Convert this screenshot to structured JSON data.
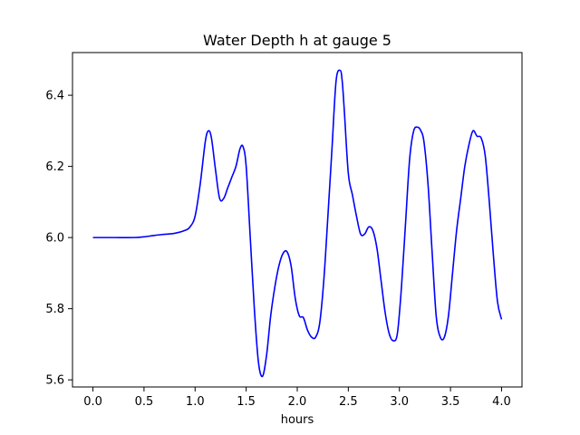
{
  "chart_data": {
    "type": "line",
    "title": "Water Depth h at gauge 5",
    "xlabel": "hours",
    "ylabel": "",
    "xlim": [
      -0.2,
      4.2
    ],
    "ylim": [
      5.58,
      6.52
    ],
    "x_ticks": [
      "0.0",
      "0.5",
      "1.0",
      "1.5",
      "2.0",
      "2.5",
      "3.0",
      "3.5",
      "4.0"
    ],
    "y_ticks": [
      "5.6",
      "5.8",
      "6.0",
      "6.2",
      "6.4"
    ],
    "grid": false,
    "legend": "none",
    "series": [
      {
        "color": "#0000ff",
        "x": [
          0.0,
          0.2,
          0.4,
          0.5,
          0.6,
          0.7,
          0.8,
          0.9,
          0.95,
          1.0,
          1.05,
          1.1,
          1.13,
          1.16,
          1.2,
          1.24,
          1.28,
          1.32,
          1.36,
          1.4,
          1.44,
          1.47,
          1.5,
          1.54,
          1.58,
          1.62,
          1.66,
          1.7,
          1.74,
          1.78,
          1.82,
          1.86,
          1.9,
          1.94,
          1.98,
          2.02,
          2.06,
          2.1,
          2.14,
          2.18,
          2.22,
          2.26,
          2.3,
          2.34,
          2.38,
          2.42,
          2.44,
          2.46,
          2.5,
          2.54,
          2.58,
          2.62,
          2.66,
          2.7,
          2.74,
          2.78,
          2.82,
          2.86,
          2.9,
          2.94,
          2.98,
          3.02,
          3.06,
          3.1,
          3.14,
          3.18,
          3.21,
          3.24,
          3.28,
          3.32,
          3.36,
          3.4,
          3.44,
          3.48,
          3.52,
          3.56,
          3.6,
          3.64,
          3.68,
          3.72,
          3.76,
          3.8,
          3.84,
          3.88,
          3.92,
          3.96,
          4.0
        ],
        "y": [
          6.0,
          6.0,
          6.0,
          6.002,
          6.006,
          6.009,
          6.012,
          6.02,
          6.03,
          6.06,
          6.15,
          6.27,
          6.3,
          6.28,
          6.19,
          6.11,
          6.11,
          6.14,
          6.17,
          6.2,
          6.25,
          6.255,
          6.2,
          6.0,
          5.8,
          5.65,
          5.61,
          5.67,
          5.78,
          5.86,
          5.92,
          5.955,
          5.96,
          5.92,
          5.83,
          5.78,
          5.775,
          5.74,
          5.72,
          5.72,
          5.76,
          5.88,
          6.06,
          6.25,
          6.44,
          6.47,
          6.44,
          6.36,
          6.18,
          6.12,
          6.06,
          6.01,
          6.01,
          6.03,
          6.02,
          5.97,
          5.88,
          5.79,
          5.73,
          5.71,
          5.73,
          5.86,
          6.04,
          6.22,
          6.3,
          6.31,
          6.3,
          6.27,
          6.15,
          5.96,
          5.78,
          5.72,
          5.72,
          5.78,
          5.9,
          6.02,
          6.11,
          6.2,
          6.26,
          6.3,
          6.285,
          6.28,
          6.23,
          6.1,
          5.95,
          5.82,
          5.77
        ]
      }
    ]
  }
}
